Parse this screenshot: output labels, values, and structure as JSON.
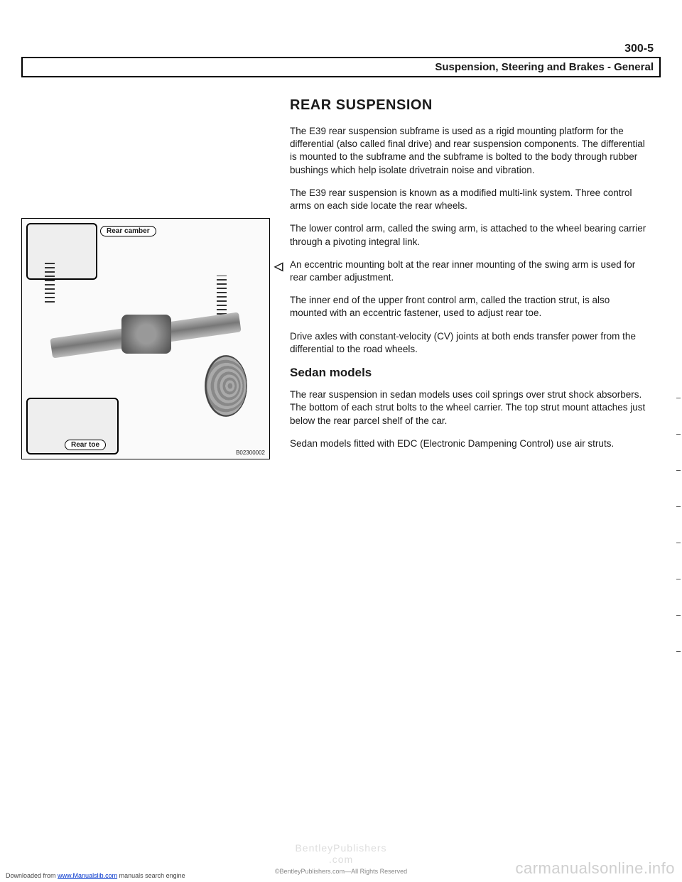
{
  "page_number": "300-5",
  "header_title": "Suspension, Steering and Brakes - General",
  "section_title": "REAR SUSPENSION",
  "figure": {
    "camber_label": "Rear camber",
    "toe_label": "Rear toe",
    "figure_id": "B02300002"
  },
  "paragraphs": {
    "p1": "The E39 rear suspension subframe is used as a rigid mounting platform for the differential (also called final drive) and rear suspension components. The differential is mounted to the subframe and the subframe is bolted to the body through rubber bushings which help isolate drivetrain noise and vibration.",
    "p2": "The E39 rear suspension is known as a modified multi-link system. Three control arms on each side locate the rear wheels.",
    "p3": "The lower control arm, called the swing arm, is attached to the wheel bearing carrier through a pivoting integral link.",
    "p4": "An eccentric mounting bolt at the rear inner mounting of the swing arm is used for rear camber adjustment.",
    "p5": "The inner end of the upper front control arm, called the traction strut, is also mounted with an eccentric fastener, used to adjust rear toe.",
    "p6": "Drive axles with constant-velocity (CV) joints at both ends transfer power from the differential to the road wheels.",
    "p7": "The rear suspension in sedan models uses coil springs over strut shock absorbers. The bottom of each strut bolts to the wheel carrier. The top strut mount attaches just below the rear parcel shelf of the car.",
    "p8": "Sedan models fitted with EDC (Electronic Dampening Control) use air struts."
  },
  "subhead_sedan": "Sedan models",
  "footer": {
    "ghost": "BentleyPublishers",
    "ghost_sub": ".com",
    "copyright": "©BentleyPublishers.com—All Rights Reserved",
    "download_prefix": "Downloaded from ",
    "download_link": "www.Manualslib.com",
    "download_suffix": " manuals search engine"
  },
  "watermark": "carmanualsonline.info"
}
